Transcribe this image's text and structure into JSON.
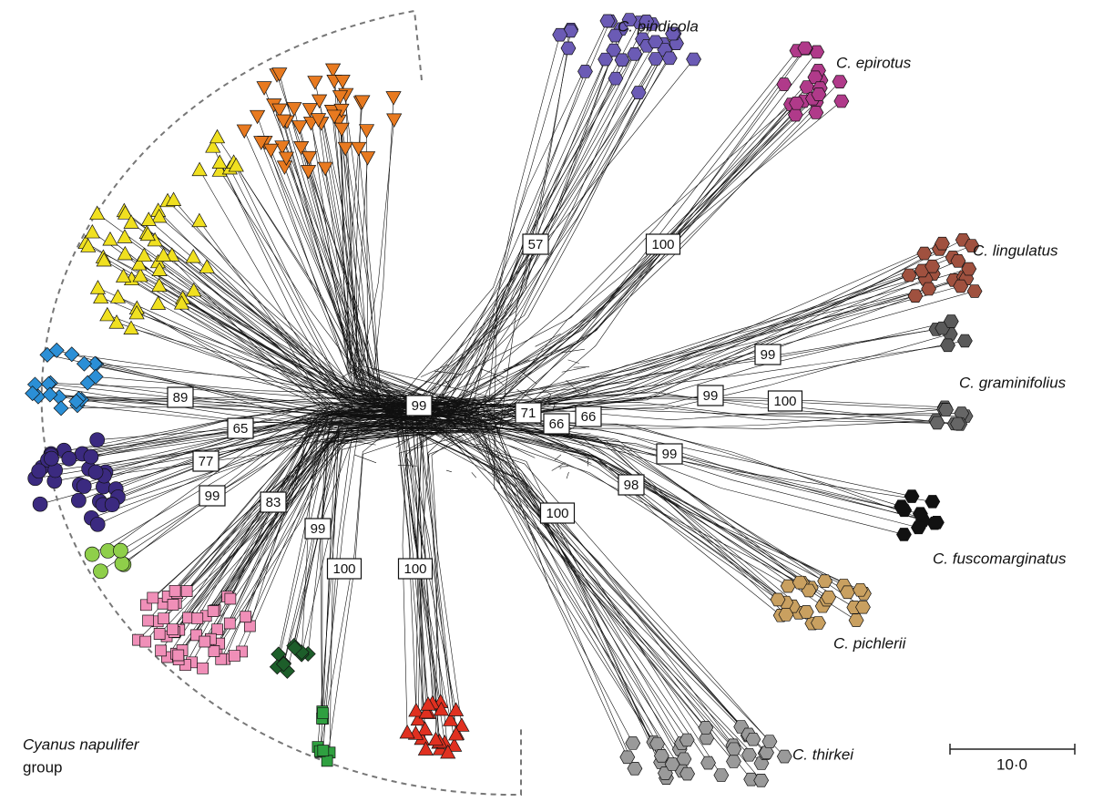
{
  "species_labels": [
    "C. pindicola",
    "C. epirotus",
    "C. lingulatus",
    "C. graminifolius",
    "C. fuscomarginatus",
    "C. pichlerii",
    "C. thirkei"
  ],
  "group_label": [
    "Cyanus napulifer",
    "group"
  ],
  "support_values": [
    57,
    100,
    89,
    99,
    65,
    71,
    66,
    66,
    99,
    99,
    100,
    77,
    99,
    98,
    99,
    83,
    100,
    99,
    100,
    100
  ],
  "scale_bar": "10·0"
}
